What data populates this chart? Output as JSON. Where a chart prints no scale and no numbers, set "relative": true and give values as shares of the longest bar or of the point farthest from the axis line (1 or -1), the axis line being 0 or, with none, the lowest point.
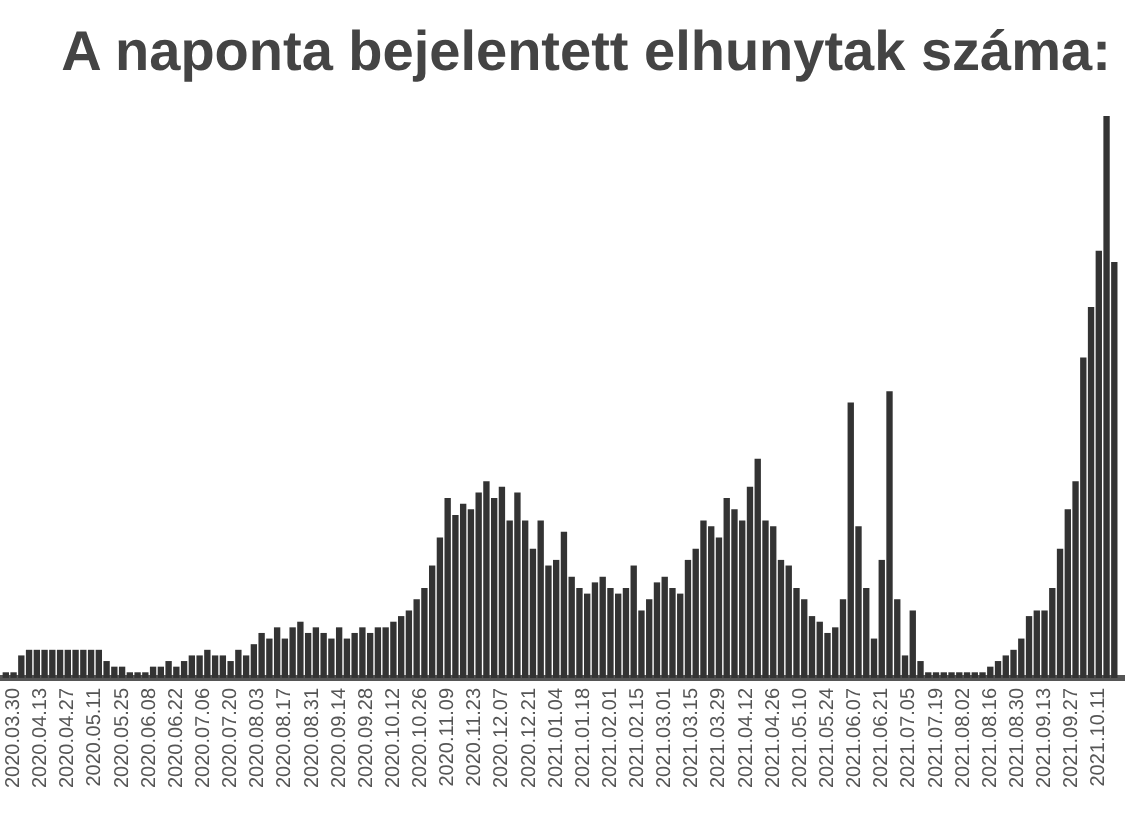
{
  "chart_data": {
    "type": "bar",
    "title": "A naponta bejelentett elhunytak száma:",
    "relative": true,
    "color": "#333333",
    "x": [
      "2020-03-26",
      "2020-03-30",
      "2020-04-03",
      "2020-04-07",
      "2020-04-11",
      "2020-04-15",
      "2020-04-19",
      "2020-04-23",
      "2020-04-27",
      "2020-05-01",
      "2020-05-05",
      "2020-05-09",
      "2020-05-13",
      "2020-05-17",
      "2020-05-21",
      "2020-05-25",
      "2020-05-29",
      "2020-06-02",
      "2020-06-06",
      "2020-06-10",
      "2020-06-14",
      "2020-06-18",
      "2020-06-22",
      "2020-06-26",
      "2020-06-30",
      "2020-07-04",
      "2020-07-08",
      "2020-07-12",
      "2020-07-16",
      "2020-07-20",
      "2020-07-24",
      "2020-07-28",
      "2020-08-01",
      "2020-08-05",
      "2020-08-09",
      "2020-08-13",
      "2020-08-17",
      "2020-08-21",
      "2020-08-25",
      "2020-08-29",
      "2020-09-02",
      "2020-09-06",
      "2020-09-10",
      "2020-09-14",
      "2020-09-18",
      "2020-09-22",
      "2020-09-26",
      "2020-09-30",
      "2020-10-04",
      "2020-10-08",
      "2020-10-12",
      "2020-10-16",
      "2020-10-20",
      "2020-10-24",
      "2020-10-28",
      "2020-11-01",
      "2020-11-05",
      "2020-11-09",
      "2020-11-13",
      "2020-11-17",
      "2020-11-21",
      "2020-11-25",
      "2020-11-29",
      "2020-12-03",
      "2020-12-07",
      "2020-12-11",
      "2020-12-15",
      "2020-12-19",
      "2020-12-23",
      "2020-12-27",
      "2020-12-31",
      "2021-01-04",
      "2021-01-08",
      "2021-01-12",
      "2021-01-16",
      "2021-01-20",
      "2021-01-24",
      "2021-01-28",
      "2021-02-01",
      "2021-02-05",
      "2021-02-09",
      "2021-02-13",
      "2021-02-17",
      "2021-02-21",
      "2021-02-25",
      "2021-03-01",
      "2021-03-05",
      "2021-03-09",
      "2021-03-13",
      "2021-03-17",
      "2021-03-21",
      "2021-03-25",
      "2021-03-29",
      "2021-04-02",
      "2021-04-06",
      "2021-04-10",
      "2021-04-14",
      "2021-04-18",
      "2021-04-22",
      "2021-04-26",
      "2021-04-30",
      "2021-05-04",
      "2021-05-08",
      "2021-05-12",
      "2021-05-16",
      "2021-05-20",
      "2021-05-24",
      "2021-05-28",
      "2021-06-01",
      "2021-06-05",
      "2021-06-09",
      "2021-06-13",
      "2021-06-17",
      "2021-06-21",
      "2021-06-25",
      "2021-06-29",
      "2021-07-03",
      "2021-07-07",
      "2021-07-11",
      "2021-07-15",
      "2021-07-19",
      "2021-07-23",
      "2021-07-27",
      "2021-07-31",
      "2021-08-04",
      "2021-08-08",
      "2021-08-12",
      "2021-08-16",
      "2021-08-20",
      "2021-08-24",
      "2021-08-28",
      "2021-09-01",
      "2021-09-05",
      "2021-09-09",
      "2021-09-13",
      "2021-09-17",
      "2021-09-21",
      "2021-09-25",
      "2021-09-29",
      "2021-10-03",
      "2021-10-07",
      "2021-10-11",
      "2021-10-15",
      "2021-10-19"
    ],
    "values": [
      0.01,
      0.01,
      0.04,
      0.05,
      0.05,
      0.05,
      0.05,
      0.05,
      0.05,
      0.05,
      0.05,
      0.05,
      0.05,
      0.03,
      0.02,
      0.02,
      0.01,
      0.01,
      0.01,
      0.02,
      0.02,
      0.03,
      0.02,
      0.03,
      0.04,
      0.04,
      0.05,
      0.04,
      0.04,
      0.03,
      0.05,
      0.04,
      0.06,
      0.08,
      0.07,
      0.09,
      0.07,
      0.09,
      0.1,
      0.08,
      0.09,
      0.08,
      0.07,
      0.09,
      0.07,
      0.08,
      0.09,
      0.08,
      0.09,
      0.09,
      0.1,
      0.11,
      0.12,
      0.14,
      0.16,
      0.2,
      0.25,
      0.32,
      0.29,
      0.31,
      0.3,
      0.33,
      0.35,
      0.32,
      0.34,
      0.28,
      0.33,
      0.28,
      0.23,
      0.28,
      0.2,
      0.21,
      0.26,
      0.18,
      0.16,
      0.15,
      0.17,
      0.18,
      0.16,
      0.15,
      0.16,
      0.2,
      0.12,
      0.14,
      0.17,
      0.18,
      0.16,
      0.15,
      0.21,
      0.23,
      0.28,
      0.27,
      0.25,
      0.32,
      0.3,
      0.28,
      0.34,
      0.39,
      0.28,
      0.27,
      0.21,
      0.2,
      0.16,
      0.14,
      0.11,
      0.1,
      0.08,
      0.09,
      0.14,
      0.49,
      0.27,
      0.16,
      0.07,
      0.21,
      0.51,
      0.14,
      0.04,
      0.12,
      0.03,
      0.01,
      0.01,
      0.01,
      0.01,
      0.01,
      0.01,
      0.01,
      0.01,
      0.02,
      0.03,
      0.04,
      0.05,
      0.07,
      0.11,
      0.12,
      0.12,
      0.16,
      0.23,
      0.3,
      0.35,
      0.57,
      0.66,
      0.76,
      1,
      0.74
    ],
    "xlim": [
      "2020-03-23",
      "2021-10-24"
    ],
    "xticks": [
      {
        "value": "2020-03-30",
        "label": "2020.03.30"
      },
      {
        "value": "2020-04-13",
        "label": "2020.04.13"
      },
      {
        "value": "2020-04-27",
        "label": "2020.04.27"
      },
      {
        "value": "2020-05-11",
        "label": "2020.05.11"
      },
      {
        "value": "2020-05-25",
        "label": "2020.05.25"
      },
      {
        "value": "2020-06-08",
        "label": "2020.06.08"
      },
      {
        "value": "2020-06-22",
        "label": "2020.06.22"
      },
      {
        "value": "2020-07-06",
        "label": "2020.07.06"
      },
      {
        "value": "2020-07-20",
        "label": "2020.07.20"
      },
      {
        "value": "2020-08-03",
        "label": "2020.08.03"
      },
      {
        "value": "2020-08-17",
        "label": "2020.08.17"
      },
      {
        "value": "2020-08-31",
        "label": "2020.08.31"
      },
      {
        "value": "2020-09-14",
        "label": "2020.09.14"
      },
      {
        "value": "2020-09-28",
        "label": "2020.09.28"
      },
      {
        "value": "2020-10-12",
        "label": "2020.10.12"
      },
      {
        "value": "2020-10-26",
        "label": "2020.10.26"
      },
      {
        "value": "2020-11-09",
        "label": "2020.11.09"
      },
      {
        "value": "2020-11-23",
        "label": "2020.11.23"
      },
      {
        "value": "2020-12-07",
        "label": "2020.12.07"
      },
      {
        "value": "2020-12-21",
        "label": "2020.12.21"
      },
      {
        "value": "2021-01-04",
        "label": "2021.01.04"
      },
      {
        "value": "2021-01-18",
        "label": "2021.01.18"
      },
      {
        "value": "2021-02-01",
        "label": "2021.02.01"
      },
      {
        "value": "2021-02-15",
        "label": "2021.02.15"
      },
      {
        "value": "2021-03-01",
        "label": "2021.03.01"
      },
      {
        "value": "2021-03-15",
        "label": "2021.03.15"
      },
      {
        "value": "2021-03-29",
        "label": "2021.03.29"
      },
      {
        "value": "2021-04-12",
        "label": "2021.04.12"
      },
      {
        "value": "2021-04-26",
        "label": "2021.04.26"
      },
      {
        "value": "2021-05-10",
        "label": "2021.05.10"
      },
      {
        "value": "2021-05-24",
        "label": "2021.05.24"
      },
      {
        "value": "2021-06-07",
        "label": "2021.06.07"
      },
      {
        "value": "2021-06-21",
        "label": "2021.06.21"
      },
      {
        "value": "2021-07-05",
        "label": "2021.07.05"
      },
      {
        "value": "2021-07-19",
        "label": "2021.07.19"
      },
      {
        "value": "2021-08-02",
        "label": "2021.08.02"
      },
      {
        "value": "2021-08-16",
        "label": "2021.08.16"
      },
      {
        "value": "2021-08-30",
        "label": "2021.08.30"
      },
      {
        "value": "2021-09-13",
        "label": "2021.09.13"
      },
      {
        "value": "2021-09-27",
        "label": "2021.09.27"
      },
      {
        "value": "2021-10-11",
        "label": "2021.10.11"
      }
    ]
  }
}
